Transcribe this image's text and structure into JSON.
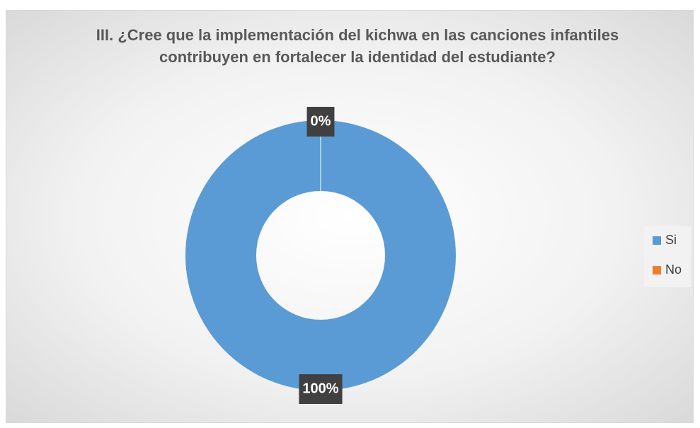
{
  "chart_data": {
    "type": "donut",
    "title": "III. ¿Cree que la implementación del kichwa en las canciones infantiles contribuyen en fortalecer la identidad del estudiante?",
    "categories": [
      "Si",
      "No"
    ],
    "values": [
      100,
      0
    ],
    "value_labels": [
      "100%",
      "0%"
    ],
    "colors": [
      "#5b9bd5",
      "#ed7d31"
    ],
    "legend": "right"
  }
}
